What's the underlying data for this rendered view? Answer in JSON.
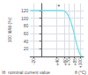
{
  "chart_data": {
    "type": "line",
    "x": [
      -28,
      -20,
      0,
      20,
      40,
      55,
      60,
      65,
      70,
      75,
      80,
      85,
      90,
      95,
      100,
      103
    ],
    "values": [
      120,
      120,
      120,
      120,
      120,
      120,
      118,
      113,
      105,
      93,
      76,
      55,
      33,
      15,
      3,
      0
    ],
    "color": "#66ddee",
    "xlim": [
      -28,
      108
    ],
    "ylim": [
      0,
      138
    ],
    "xticks": [
      -20,
      {
        "value": 40,
        "label": "+40"
      },
      {
        "value": 60,
        "label": "+60"
      },
      {
        "value": 70,
        "label": "+70"
      },
      {
        "value": 85,
        "label": "+85"
      },
      {
        "value": 100,
        "label": "+100"
      }
    ],
    "yticks": [
      20,
      40,
      60,
      80,
      100,
      120
    ],
    "grid": true,
    "xlabel": "θ (°C)",
    "ylabel": "100 Iθ/Iθ (%)",
    "annotations": [
      {
        "text": "*",
        "x": 45,
        "y": 130
      },
      {
        "text": "Iθ  nominal current value"
      }
    ]
  }
}
